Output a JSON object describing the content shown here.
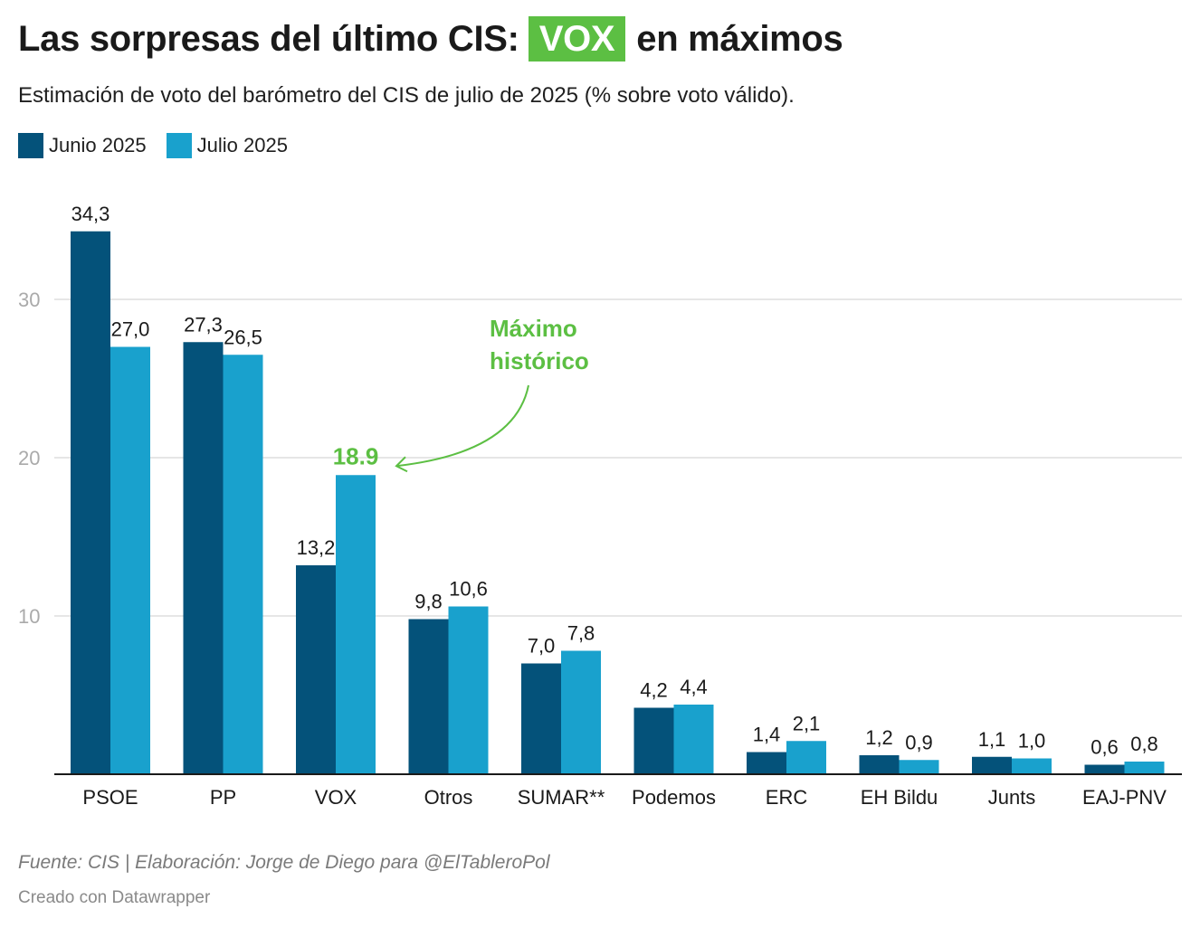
{
  "title": {
    "prefix": "Las sorpresas del último CIS:",
    "highlight": "VOX",
    "suffix": "en máximos"
  },
  "subtitle": "Estimación de voto del barómetro del CIS de julio de 2025 (% sobre voto válido).",
  "colors": {
    "junio": "#04527a",
    "julio": "#19a1cd",
    "accent": "#5cbf43",
    "grid": "#dddddd",
    "axis": "#1a1a1a",
    "tick": "#aaaaaa"
  },
  "annotation": {
    "line1": "Máximo",
    "line2": "histórico"
  },
  "chart_data": {
    "type": "bar",
    "title": "Las sorpresas del último CIS: VOX en máximos",
    "xlabel": "",
    "ylabel": "",
    "ylim": [
      0,
      35
    ],
    "yticks": [
      10,
      20,
      30
    ],
    "categories": [
      "PSOE",
      "PP",
      "VOX",
      "Otros",
      "SUMAR**",
      "Podemos",
      "ERC",
      "EH Bildu",
      "Junts",
      "EAJ-PNV"
    ],
    "series": [
      {
        "name": "Junio 2025",
        "values": [
          34.3,
          27.3,
          13.2,
          9.8,
          7.0,
          4.2,
          1.4,
          1.2,
          1.1,
          0.6
        ],
        "labels": [
          "34,3",
          "27,3",
          "13,2",
          "9,8",
          "7,0",
          "4,2",
          "1,4",
          "1,2",
          "1,1",
          "0,6"
        ]
      },
      {
        "name": "Julio 2025",
        "values": [
          27.0,
          26.5,
          18.9,
          10.6,
          7.8,
          4.4,
          2.1,
          0.9,
          1.0,
          0.8
        ],
        "labels": [
          "27,0",
          "26,5",
          "18.9",
          "10,6",
          "7,8",
          "4,4",
          "2,1",
          "0,9",
          "1,0",
          "0,8"
        ]
      }
    ],
    "highlighted_point": {
      "category": "VOX",
      "series": "Julio 2025"
    }
  },
  "footer": {
    "source": "Fuente: CIS | Elaboración: Jorge de Diego para @ElTableroPol",
    "credit": "Creado con Datawrapper"
  }
}
